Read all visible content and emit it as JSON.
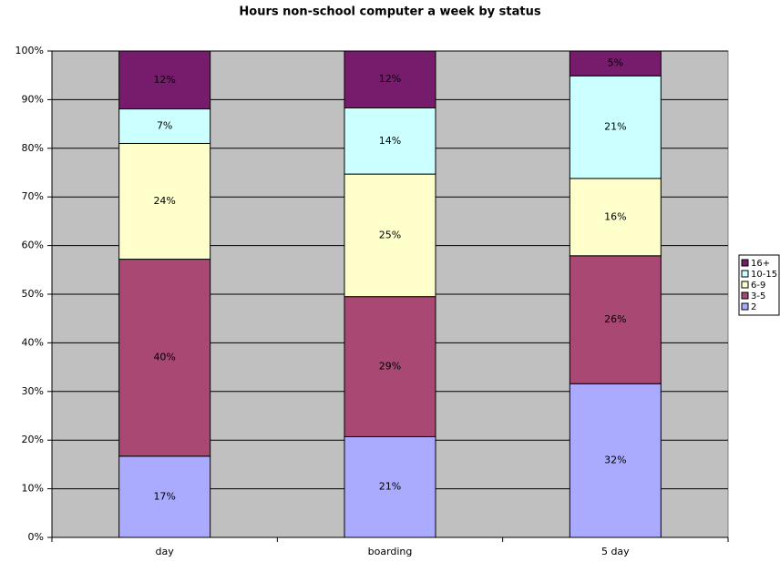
{
  "chart_data": {
    "type": "stacked_bar",
    "title": "Hours non-school computer a week by status",
    "categories": [
      "day",
      "boarding",
      "5 day"
    ],
    "series": [
      {
        "name": "2",
        "color": "#aaaaff",
        "values": [
          16.7,
          20.7,
          31.6
        ],
        "value_labels": [
          "17%",
          "21%",
          "32%"
        ]
      },
      {
        "name": "3-5",
        "color": "#a94873",
        "values": [
          40.5,
          28.8,
          26.3
        ],
        "value_labels": [
          "40%",
          "29%",
          "26%"
        ]
      },
      {
        "name": "6-9",
        "color": "#ffffcc",
        "values": [
          23.8,
          25.2,
          15.9
        ],
        "value_labels": [
          "24%",
          "25%",
          "16%"
        ]
      },
      {
        "name": "10-15",
        "color": "#ccffff",
        "values": [
          7.1,
          13.6,
          21.1
        ],
        "value_labels": [
          "7%",
          "14%",
          "21%"
        ]
      },
      {
        "name": "16+",
        "color": "#771c6c",
        "values": [
          11.9,
          11.7,
          5.1
        ],
        "value_labels": [
          "12%",
          "12%",
          "5%"
        ]
      }
    ],
    "ylim": [
      0,
      100
    ],
    "yticks": [
      {
        "value": 0,
        "label": "0%"
      },
      {
        "value": 10,
        "label": "10%"
      },
      {
        "value": 20,
        "label": "20%"
      },
      {
        "value": 30,
        "label": "30%"
      },
      {
        "value": 40,
        "label": "40%"
      },
      {
        "value": 50,
        "label": "50%"
      },
      {
        "value": 60,
        "label": "60%"
      },
      {
        "value": 70,
        "label": "70%"
      },
      {
        "value": 80,
        "label": "80%"
      },
      {
        "value": 90,
        "label": "90%"
      },
      {
        "value": 100,
        "label": "100%"
      }
    ],
    "grid": true,
    "legend": "right"
  }
}
